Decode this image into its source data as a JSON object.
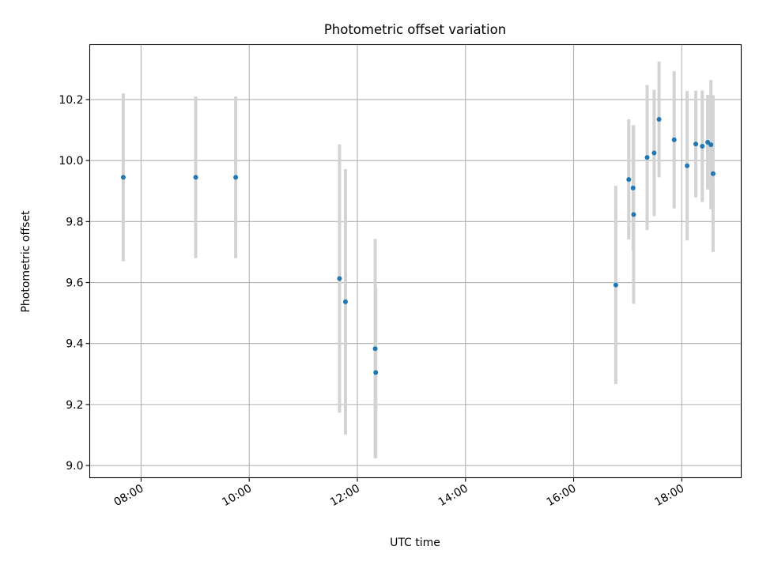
{
  "chart_data": {
    "type": "scatter",
    "title": "Photometric offset variation",
    "xlabel": "UTC time",
    "ylabel": "Photometric offset",
    "x_unit": "hours UTC",
    "xlim": [
      7.05,
      19.1
    ],
    "ylim": [
      8.96,
      10.38
    ],
    "x_ticks": [
      {
        "value": 8,
        "label": "08:00"
      },
      {
        "value": 10,
        "label": "10:00"
      },
      {
        "value": 12,
        "label": "12:00"
      },
      {
        "value": 14,
        "label": "14:00"
      },
      {
        "value": 16,
        "label": "16:00"
      },
      {
        "value": 18,
        "label": "18:00"
      }
    ],
    "y_ticks": [
      {
        "value": 9.0,
        "label": "9.0"
      },
      {
        "value": 9.2,
        "label": "9.2"
      },
      {
        "value": 9.4,
        "label": "9.4"
      },
      {
        "value": 9.6,
        "label": "9.6"
      },
      {
        "value": 9.8,
        "label": "9.8"
      },
      {
        "value": 10.0,
        "label": "10.0"
      },
      {
        "value": 10.2,
        "label": "10.2"
      }
    ],
    "grid": true,
    "marker_color": "#1f77b4",
    "errorbar_color": "#d3d3d3",
    "points": [
      {
        "x": 7.67,
        "y": 9.945,
        "err": 0.275
      },
      {
        "x": 9.01,
        "y": 9.945,
        "err": 0.265
      },
      {
        "x": 9.75,
        "y": 9.945,
        "err": 0.265
      },
      {
        "x": 11.67,
        "y": 9.613,
        "err": 0.44
      },
      {
        "x": 11.78,
        "y": 9.537,
        "err": 0.435
      },
      {
        "x": 12.33,
        "y": 9.383,
        "err": 0.36
      },
      {
        "x": 12.34,
        "y": 9.305,
        "err": 0.28
      },
      {
        "x": 16.78,
        "y": 9.592,
        "err": 0.325
      },
      {
        "x": 17.02,
        "y": 9.938,
        "err": 0.197
      },
      {
        "x": 17.1,
        "y": 9.91,
        "err": 0.205
      },
      {
        "x": 17.11,
        "y": 9.823,
        "err": 0.293
      },
      {
        "x": 17.36,
        "y": 10.01,
        "err": 0.238
      },
      {
        "x": 17.49,
        "y": 10.025,
        "err": 0.207
      },
      {
        "x": 17.58,
        "y": 10.135,
        "err": 0.19
      },
      {
        "x": 17.86,
        "y": 10.068,
        "err": 0.225
      },
      {
        "x": 18.1,
        "y": 9.983,
        "err": 0.245
      },
      {
        "x": 18.26,
        "y": 10.054,
        "err": 0.175
      },
      {
        "x": 18.38,
        "y": 10.047,
        "err": 0.183
      },
      {
        "x": 18.48,
        "y": 10.06,
        "err": 0.155
      },
      {
        "x": 18.54,
        "y": 10.052,
        "err": 0.212
      },
      {
        "x": 18.58,
        "y": 9.957,
        "err": 0.257
      }
    ]
  }
}
